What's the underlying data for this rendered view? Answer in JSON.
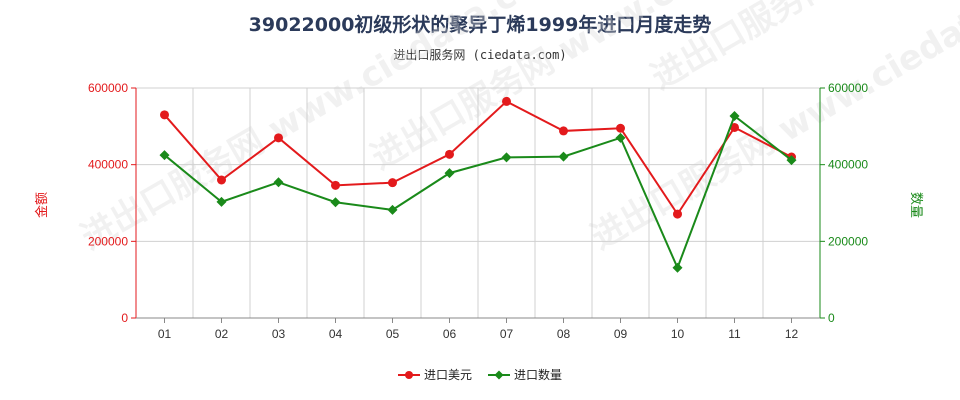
{
  "title": "39022000初级形状的聚异丁烯1999年进口月度走势",
  "subtitle": "进出口服务网 (ciedata.com)",
  "watermark": "进出口服务网 www.ciedata.com",
  "chart_data": {
    "type": "line",
    "categories": [
      "01",
      "02",
      "03",
      "04",
      "05",
      "06",
      "07",
      "08",
      "09",
      "10",
      "11",
      "12"
    ],
    "y_left_label": "金额",
    "y_right_label": "数量",
    "y_left_range": [
      0,
      600000
    ],
    "y_right_range": [
      0,
      600000
    ],
    "y_left_ticks": [
      "0",
      "200000",
      "400000",
      "600000"
    ],
    "y_right_ticks": [
      "0",
      "200000",
      "400000",
      "600000"
    ],
    "grid": true,
    "legend_position": "bottom-center",
    "series": [
      {
        "name": "进口美元",
        "axis": "left",
        "color": "#e31a1c",
        "values": [
          530000,
          360000,
          470000,
          346000,
          353000,
          427000,
          565000,
          488000,
          495000,
          271000,
          497000,
          420000
        ]
      },
      {
        "name": "进口数量",
        "axis": "right",
        "color": "#1a8a1a",
        "values": [
          425000,
          303000,
          354000,
          302000,
          282000,
          378000,
          419000,
          421000,
          470000,
          131000,
          527000,
          412000
        ]
      }
    ]
  }
}
